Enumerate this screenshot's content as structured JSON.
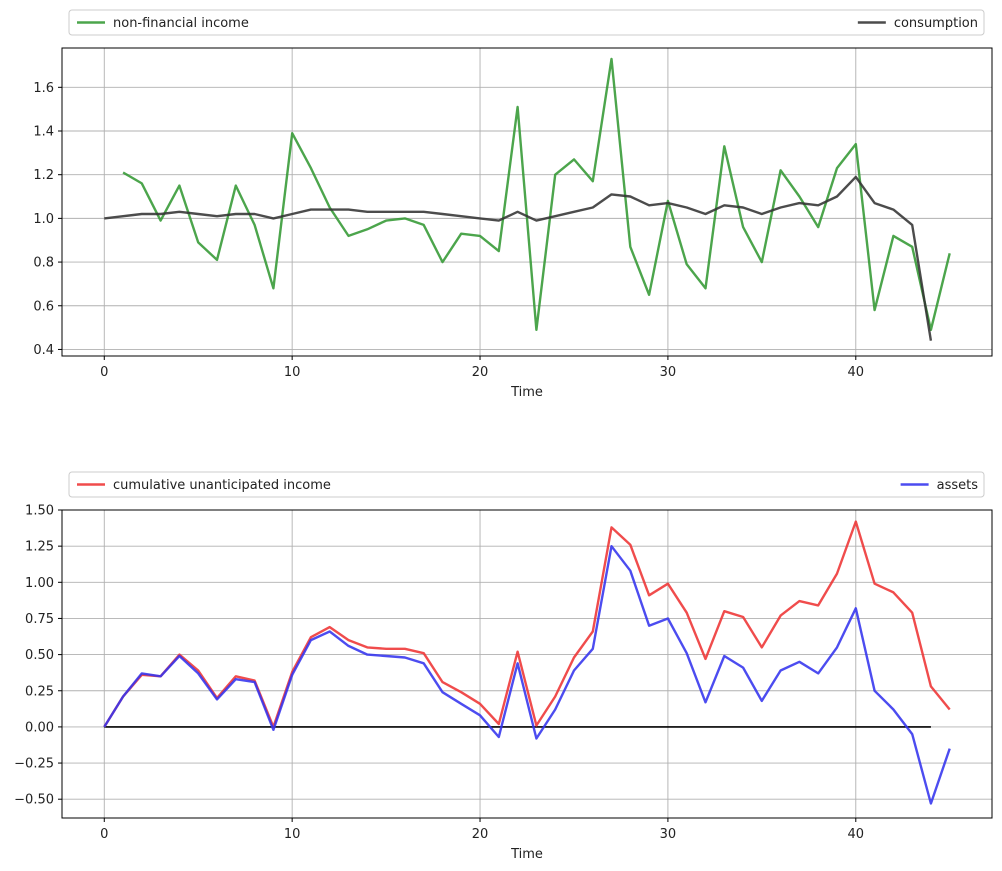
{
  "chart_data": [
    {
      "type": "line",
      "title": "",
      "xlabel": "Time",
      "ylabel": "",
      "xlim": [
        -2.25,
        47.25
      ],
      "ylim": [
        0.37,
        1.78
      ],
      "xticks": [
        "0",
        "10",
        "20",
        "30",
        "40"
      ],
      "yticks": [
        "0.4",
        "0.6",
        "0.8",
        "1.0",
        "1.2",
        "1.4",
        "1.6"
      ],
      "grid": true,
      "legend": "top, above axes, spread across",
      "series": [
        {
          "name": "non-financial income",
          "color": "#339933",
          "x": [
            1,
            2,
            3,
            4,
            5,
            6,
            7,
            8,
            9,
            10,
            11,
            12,
            13,
            14,
            15,
            16,
            17,
            18,
            19,
            20,
            21,
            22,
            23,
            24,
            25,
            26,
            27,
            28,
            29,
            30,
            31,
            32,
            33,
            34,
            35,
            36,
            37,
            38,
            39,
            40,
            41,
            42,
            43,
            44,
            45
          ],
          "values": [
            1.21,
            1.16,
            0.99,
            1.15,
            0.89,
            0.81,
            1.15,
            0.97,
            0.68,
            1.39,
            1.23,
            1.05,
            0.92,
            0.95,
            0.99,
            1.0,
            0.97,
            0.8,
            0.93,
            0.92,
            0.85,
            1.51,
            0.49,
            1.2,
            1.27,
            1.17,
            1.73,
            0.87,
            0.65,
            1.08,
            0.79,
            0.68,
            1.33,
            0.96,
            0.8,
            1.22,
            1.1,
            0.96,
            1.23,
            1.34,
            0.58,
            0.92,
            0.87,
            0.49,
            0.84
          ]
        },
        {
          "name": "consumption",
          "color": "#333333",
          "x": [
            0,
            1,
            2,
            3,
            4,
            5,
            6,
            7,
            8,
            9,
            10,
            11,
            12,
            13,
            14,
            15,
            16,
            17,
            18,
            19,
            20,
            21,
            22,
            23,
            24,
            25,
            26,
            27,
            28,
            29,
            30,
            31,
            32,
            33,
            34,
            35,
            36,
            37,
            38,
            39,
            40,
            41,
            42,
            43,
            44
          ],
          "values": [
            1.0,
            1.01,
            1.02,
            1.02,
            1.03,
            1.02,
            1.01,
            1.02,
            1.02,
            1.0,
            1.02,
            1.04,
            1.04,
            1.04,
            1.03,
            1.03,
            1.03,
            1.03,
            1.02,
            1.01,
            1.0,
            0.99,
            1.03,
            0.99,
            1.01,
            1.03,
            1.05,
            1.11,
            1.1,
            1.06,
            1.07,
            1.05,
            1.02,
            1.06,
            1.05,
            1.02,
            1.05,
            1.07,
            1.06,
            1.1,
            1.19,
            1.07,
            1.04,
            0.97,
            0.44
          ]
        }
      ]
    },
    {
      "type": "line",
      "title": "",
      "xlabel": "Time",
      "ylabel": "",
      "xlim": [
        -2.25,
        47.25
      ],
      "ylim": [
        -0.63,
        1.5
      ],
      "xticks": [
        "0",
        "10",
        "20",
        "30",
        "40"
      ],
      "yticks": [
        "−0.50",
        "−0.25",
        "0.00",
        "0.25",
        "0.50",
        "0.75",
        "1.00",
        "1.25",
        "1.50"
      ],
      "grid": true,
      "legend": "top, above axes, spread across",
      "hline": {
        "y": 0,
        "x": [
          0,
          44
        ],
        "color": "#000000"
      },
      "series": [
        {
          "name": "cumulative unanticipated income",
          "color": "#ee3333",
          "x": [
            0,
            1,
            2,
            3,
            4,
            5,
            6,
            7,
            8,
            9,
            10,
            11,
            12,
            13,
            14,
            15,
            16,
            17,
            18,
            19,
            20,
            21,
            22,
            23,
            24,
            25,
            26,
            27,
            28,
            29,
            30,
            31,
            32,
            33,
            34,
            35,
            36,
            37,
            38,
            39,
            40,
            41,
            42,
            43,
            44,
            45
          ],
          "values": [
            0.0,
            0.21,
            0.36,
            0.35,
            0.5,
            0.39,
            0.2,
            0.35,
            0.32,
            0.0,
            0.38,
            0.62,
            0.69,
            0.6,
            0.55,
            0.54,
            0.54,
            0.51,
            0.31,
            0.24,
            0.16,
            0.02,
            0.52,
            0.01,
            0.21,
            0.48,
            0.66,
            1.38,
            1.26,
            0.91,
            0.99,
            0.79,
            0.47,
            0.8,
            0.76,
            0.55,
            0.77,
            0.87,
            0.84,
            1.06,
            1.42,
            0.99,
            0.93,
            0.79,
            0.28,
            0.12
          ]
        },
        {
          "name": "assets",
          "color": "#3333ee",
          "x": [
            0,
            1,
            2,
            3,
            4,
            5,
            6,
            7,
            8,
            9,
            10,
            11,
            12,
            13,
            14,
            15,
            16,
            17,
            18,
            19,
            20,
            21,
            22,
            23,
            24,
            25,
            26,
            27,
            28,
            29,
            30,
            31,
            32,
            33,
            34,
            35,
            36,
            37,
            38,
            39,
            40,
            41,
            42,
            43,
            44,
            45
          ],
          "values": [
            0.0,
            0.21,
            0.37,
            0.35,
            0.49,
            0.37,
            0.19,
            0.33,
            0.31,
            -0.02,
            0.36,
            0.6,
            0.66,
            0.56,
            0.5,
            0.49,
            0.48,
            0.44,
            0.24,
            0.16,
            0.08,
            -0.07,
            0.44,
            -0.08,
            0.12,
            0.39,
            0.54,
            1.25,
            1.08,
            0.7,
            0.75,
            0.51,
            0.17,
            0.49,
            0.41,
            0.18,
            0.39,
            0.45,
            0.37,
            0.55,
            0.82,
            0.25,
            0.12,
            -0.05,
            -0.53,
            -0.15
          ]
        }
      ]
    }
  ]
}
